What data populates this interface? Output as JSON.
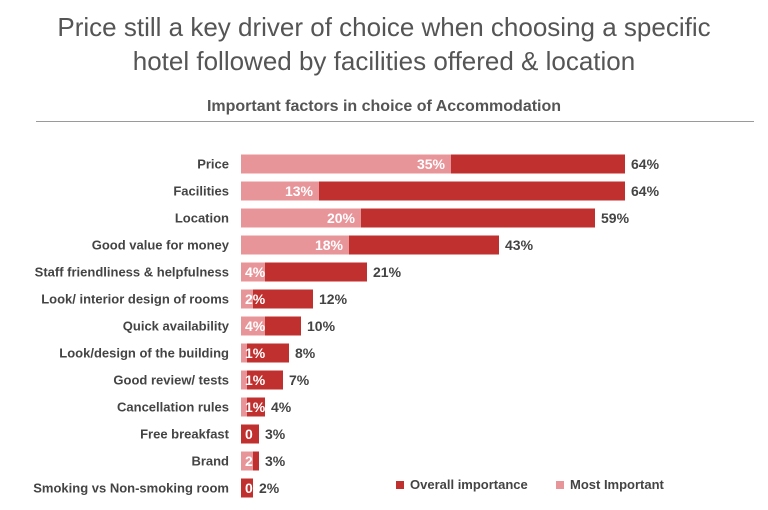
{
  "headline": {
    "line1": "Price still a key driver of choice when choosing a specific",
    "line2": "hotel followed by facilities offered & location"
  },
  "colors": {
    "overall": "#c0302e",
    "most": "#e8959a",
    "text": "#444444"
  },
  "chart_data": {
    "type": "bar",
    "orientation": "horizontal",
    "title": "Important factors in choice of Accommodation",
    "categories": [
      "Price",
      "Facilities",
      "Location",
      "Good value for money",
      "Staff friendliness & helpfulness",
      "Look/ interior design of rooms",
      "Quick availability",
      "Look/design of the building",
      "Good review/ tests",
      "Cancellation rules",
      "Free breakfast",
      "Brand",
      "Smoking vs Non-smoking room"
    ],
    "series": [
      {
        "name": "Overall importance",
        "values": [
          64,
          64,
          59,
          43,
          21,
          12,
          10,
          8,
          7,
          4,
          3,
          3,
          2
        ],
        "labels": [
          "64%",
          "64%",
          "59%",
          "43%",
          "21%",
          "12%",
          "10%",
          "8%",
          "7%",
          "4%",
          "3%",
          "3%",
          "2%"
        ]
      },
      {
        "name": "Most Important",
        "values": [
          35,
          13,
          20,
          18,
          4,
          2,
          4,
          1,
          1,
          1,
          0,
          2,
          0
        ],
        "labels": [
          "35%",
          "13%",
          "20%",
          "18%",
          "4%",
          "2%",
          "4%",
          "1%",
          "1%",
          "1%",
          "0",
          "2",
          "0"
        ]
      }
    ],
    "legend_position": "bottom-right",
    "unit": "%"
  }
}
